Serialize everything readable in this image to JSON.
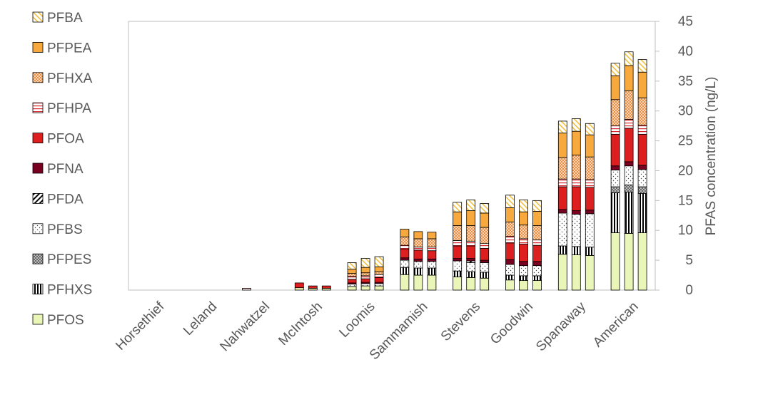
{
  "chart_data": {
    "type": "bar",
    "stacked": true,
    "title": "",
    "xlabel": "",
    "ylabel": "PFAS concentration (ng/L)",
    "ylim": [
      0,
      45
    ],
    "yticks": [
      0,
      5,
      10,
      15,
      20,
      25,
      30,
      35,
      40,
      45
    ],
    "grid": false,
    "legend_position": "left",
    "categories": [
      "Horsethief",
      "Leland",
      "Nahwatzel",
      "McIntosh",
      "Loomis",
      "Sammamish",
      "Stevens",
      "Goodwin",
      "Spanaway",
      "American"
    ],
    "replicates_per_category": 3,
    "series": [
      {
        "name": "PFOS",
        "color": "#eaf5b8",
        "pattern": "solid",
        "values": [
          [
            0,
            0,
            0
          ],
          [
            0,
            0,
            0
          ],
          [
            0,
            0,
            0
          ],
          [
            0.4,
            0.3,
            0.3
          ],
          [
            0.6,
            0.7,
            0.7
          ],
          [
            2.6,
            2.5,
            2.5
          ],
          [
            2.2,
            2.1,
            2.0
          ],
          [
            1.7,
            1.6,
            1.6
          ],
          [
            6.0,
            5.9,
            5.8
          ],
          [
            9.6,
            9.5,
            9.6
          ]
        ]
      },
      {
        "name": "PFHXS",
        "color": "#000000",
        "pattern": "vertical",
        "values": [
          [
            0,
            0,
            0
          ],
          [
            0,
            0,
            0
          ],
          [
            0,
            0,
            0
          ],
          [
            0,
            0,
            0
          ],
          [
            0,
            0,
            0
          ],
          [
            1.2,
            1.2,
            1.2
          ],
          [
            1.0,
            1.0,
            1.0
          ],
          [
            0.8,
            0.8,
            0.8
          ],
          [
            1.4,
            1.4,
            1.4
          ],
          [
            6.7,
            6.9,
            6.6
          ]
        ]
      },
      {
        "name": "PFPES",
        "color": "#7f7f7f",
        "pattern": "crosshatch",
        "values": [
          [
            0,
            0,
            0
          ],
          [
            0,
            0,
            0
          ],
          [
            0,
            0,
            0
          ],
          [
            0,
            0,
            0
          ],
          [
            0,
            0,
            0
          ],
          [
            0,
            0,
            0
          ],
          [
            0,
            0,
            0
          ],
          [
            0,
            0,
            0
          ],
          [
            0,
            0,
            0
          ],
          [
            1.0,
            1.2,
            1.1
          ]
        ]
      },
      {
        "name": "PFBS",
        "color": "#7f7f7f",
        "pattern": "dots",
        "values": [
          [
            0,
            0,
            0
          ],
          [
            0,
            0,
            0
          ],
          [
            0,
            0,
            0
          ],
          [
            0,
            0,
            0
          ],
          [
            0.4,
            0.4,
            0.4
          ],
          [
            1.2,
            1.1,
            1.1
          ],
          [
            1.7,
            1.5,
            1.6
          ],
          [
            1.8,
            1.7,
            1.7
          ],
          [
            5.5,
            5.4,
            5.6
          ],
          [
            2.8,
            3.2,
            2.9
          ]
        ]
      },
      {
        "name": "PFDA",
        "color": "#000000",
        "pattern": "diagonal",
        "values": [
          [
            0,
            0,
            0
          ],
          [
            0,
            0,
            0
          ],
          [
            0,
            0,
            0
          ],
          [
            0,
            0,
            0
          ],
          [
            0,
            0,
            0
          ],
          [
            0,
            0,
            0
          ],
          [
            0,
            0.3,
            0
          ],
          [
            0,
            0,
            0
          ],
          [
            0,
            0,
            0
          ],
          [
            0,
            0,
            0
          ]
        ]
      },
      {
        "name": "PFNA",
        "color": "#7a0021",
        "pattern": "solid",
        "values": [
          [
            0,
            0,
            0
          ],
          [
            0,
            0,
            0
          ],
          [
            0,
            0,
            0
          ],
          [
            0,
            0,
            0
          ],
          [
            0.2,
            0.2,
            0.2
          ],
          [
            0.4,
            0.4,
            0.4
          ],
          [
            0.4,
            0.4,
            0.4
          ],
          [
            0.8,
            0.7,
            0.7
          ],
          [
            0.6,
            0.6,
            0.6
          ],
          [
            0.7,
            0.7,
            0.7
          ]
        ]
      },
      {
        "name": "PFOA",
        "color": "#dd1f1f",
        "pattern": "solid",
        "values": [
          [
            0,
            0,
            0
          ],
          [
            0,
            0,
            0
          ],
          [
            0,
            0,
            0
          ],
          [
            0.8,
            0.4,
            0.4
          ],
          [
            0.6,
            0.6,
            0.8
          ],
          [
            1.5,
            1.5,
            1.4
          ],
          [
            2.1,
            2.1,
            2.0
          ],
          [
            2.8,
            2.9,
            2.7
          ],
          [
            3.8,
            4.0,
            3.8
          ],
          [
            5.3,
            5.6,
            5.2
          ]
        ]
      },
      {
        "name": "PFHPA",
        "color": "#d9262c",
        "pattern": "horizontal",
        "values": [
          [
            0,
            0,
            0
          ],
          [
            0,
            0,
            0
          ],
          [
            0.3,
            0,
            0
          ],
          [
            0,
            0,
            0
          ],
          [
            0.5,
            0.5,
            0.5
          ],
          [
            0.6,
            0.5,
            0.6
          ],
          [
            0.9,
            0.8,
            0.8
          ],
          [
            1.1,
            0.9,
            0.9
          ],
          [
            1.3,
            1.3,
            1.3
          ],
          [
            1.4,
            1.5,
            1.5
          ]
        ]
      },
      {
        "name": "PFHXA",
        "color": "#e8914a",
        "pattern": "check",
        "values": [
          [
            0,
            0,
            0
          ],
          [
            0,
            0,
            0
          ],
          [
            0,
            0,
            0
          ],
          [
            0,
            0,
            0
          ],
          [
            0.5,
            0.5,
            0.5
          ],
          [
            1.4,
            1.4,
            1.4
          ],
          [
            2.5,
            2.6,
            2.7
          ],
          [
            2.4,
            2.3,
            2.4
          ],
          [
            3.6,
            4.0,
            3.8
          ],
          [
            4.4,
            4.8,
            4.6
          ]
        ]
      },
      {
        "name": "PFPEA",
        "color": "#f7a93d",
        "pattern": "solid",
        "values": [
          [
            0,
            0,
            0
          ],
          [
            0,
            0,
            0
          ],
          [
            0,
            0,
            0
          ],
          [
            0,
            0,
            0
          ],
          [
            0.7,
            0.9,
            0.8
          ],
          [
            1.3,
            1.2,
            1.1
          ],
          [
            2.3,
            2.5,
            2.4
          ],
          [
            2.4,
            2.2,
            2.4
          ],
          [
            4.1,
            4.0,
            3.7
          ],
          [
            4.0,
            4.2,
            4.3
          ]
        ]
      },
      {
        "name": "PFBA",
        "color": "#f0c040",
        "pattern": "diagonal-light",
        "values": [
          [
            0,
            0,
            0
          ],
          [
            0,
            0,
            0
          ],
          [
            0,
            0,
            0
          ],
          [
            0,
            0,
            0
          ],
          [
            1.1,
            1.5,
            1.7
          ],
          [
            0,
            0,
            0
          ],
          [
            1.6,
            1.8,
            1.6
          ],
          [
            2.1,
            2.0,
            1.8
          ],
          [
            2.0,
            2.1,
            1.9
          ],
          [
            2.1,
            2.3,
            2.1
          ]
        ]
      }
    ]
  }
}
